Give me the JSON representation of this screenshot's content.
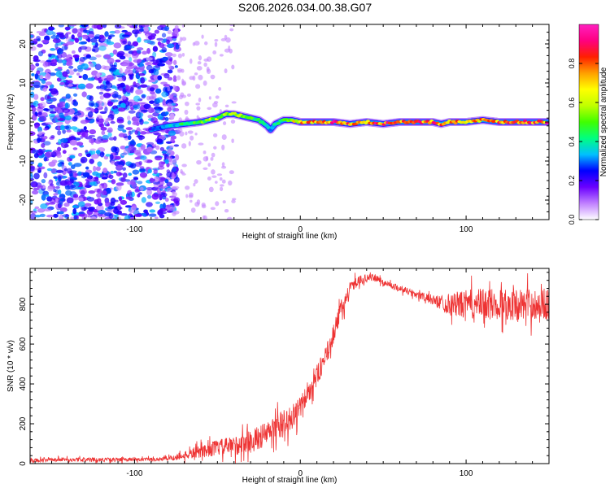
{
  "title": "S206.2026.034.00.38.G07",
  "chart_data": [
    {
      "type": "heatmap",
      "xlabel": "Height of straight line (km)",
      "ylabel": "Frequency (Hz)",
      "xlim": [
        -163,
        150
      ],
      "ylim": [
        -25,
        25
      ],
      "xticks": [
        -100,
        0,
        100
      ],
      "yticks": [
        20,
        10,
        0,
        -10,
        -20
      ],
      "colorbar": {
        "label": "Normalized spectral amplitude",
        "range": [
          0,
          1
        ],
        "ticks": [
          "0.0",
          "0.2",
          "0.4",
          "0.6",
          "0.8"
        ],
        "colormap": [
          "#ffffff",
          "#c080ff",
          "#6a00ff",
          "#0000ff",
          "#00c0ff",
          "#00ff80",
          "#40ff00",
          "#c0ff00",
          "#ffff00",
          "#ffa000",
          "#ff2000",
          "#ff0080",
          "#ff20c0"
        ]
      },
      "signal_track": {
        "x": [
          -90,
          -80,
          -70,
          -60,
          -50,
          -45,
          -40,
          -35,
          -30,
          -25,
          -20,
          -18,
          -15,
          -10,
          -5,
          0,
          10,
          20,
          30,
          40,
          50,
          60,
          70,
          80,
          85,
          90,
          100,
          110,
          120,
          130,
          140,
          150
        ],
        "frequency": [
          -2.0,
          -1.0,
          -0.5,
          0.0,
          1.0,
          2.0,
          2.0,
          1.5,
          1.0,
          0.5,
          -1.0,
          -2.0,
          -0.5,
          0.5,
          0.5,
          0.0,
          0.0,
          0.0,
          -0.5,
          0.0,
          -0.5,
          0.0,
          0.0,
          0.0,
          -0.5,
          0.0,
          0.0,
          0.5,
          0.0,
          0.0,
          0.0,
          0.0
        ],
        "amplitude": [
          0.25,
          0.35,
          0.45,
          0.55,
          0.6,
          0.55,
          0.6,
          0.6,
          0.55,
          0.45,
          0.4,
          0.35,
          0.45,
          0.6,
          0.7,
          0.75,
          0.85,
          0.9,
          0.9,
          0.85,
          0.9,
          0.85,
          0.85,
          0.85,
          0.8,
          0.8,
          0.8,
          0.8,
          0.85,
          0.85,
          0.85,
          0.85
        ]
      },
      "noise_region": {
        "x": [
          -163,
          -80
        ],
        "amplitude": 0.2
      }
    },
    {
      "type": "line",
      "xlabel": "Height of straight line (km)",
      "ylabel": "SNR (10 * v/v)",
      "xlim": [
        -163,
        150
      ],
      "ylim": [
        0,
        980
      ],
      "xticks": [
        -100,
        0,
        100
      ],
      "yticks": [
        0,
        200,
        400,
        600,
        800
      ],
      "color": "#ee3333",
      "series": [
        {
          "x": [
            -163,
            -140,
            -120,
            -100,
            -90,
            -80,
            -70,
            -60,
            -50,
            -40,
            -30,
            -20,
            -10,
            -5,
            0,
            5,
            10,
            15,
            20,
            25,
            30,
            35,
            40,
            45,
            50,
            60,
            70,
            80,
            90,
            100,
            110,
            120,
            130,
            140,
            150
          ],
          "values": [
            15,
            20,
            20,
            20,
            20,
            25,
            40,
            60,
            80,
            90,
            110,
            150,
            200,
            230,
            280,
            360,
            440,
            530,
            650,
            780,
            880,
            920,
            930,
            935,
            910,
            880,
            850,
            820,
            800,
            800,
            800,
            800,
            800,
            800,
            800
          ],
          "noise": [
            12,
            12,
            12,
            12,
            12,
            15,
            25,
            40,
            50,
            60,
            70,
            80,
            90,
            80,
            70,
            70,
            70,
            60,
            60,
            60,
            40,
            30,
            25,
            20,
            20,
            20,
            25,
            30,
            70,
            90,
            100,
            100,
            100,
            100,
            100
          ]
        }
      ]
    }
  ]
}
